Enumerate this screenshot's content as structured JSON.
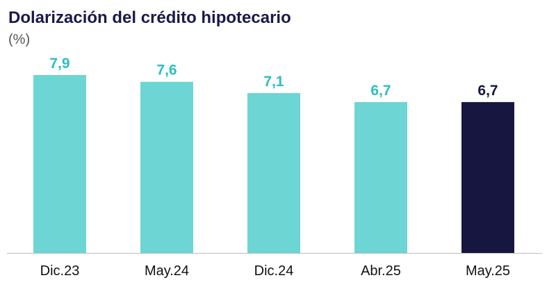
{
  "chart_data": {
    "type": "bar",
    "title": "Dolarización del crédito hipotecario",
    "subtitle": "(%)",
    "categories": [
      "Dic.23",
      "May.24",
      "Dic.24",
      "Abr.25",
      "May.25"
    ],
    "values": [
      7.9,
      7.6,
      7.1,
      6.7,
      6.7
    ],
    "value_labels": [
      "7,9",
      "7,6",
      "7,1",
      "6,7",
      "6,7"
    ],
    "ylim": [
      0,
      7.9
    ],
    "grid": false,
    "legend": "none",
    "colors": {
      "bar": "#6dd5d3",
      "highlight_bar": "#161641",
      "label": "#2bbfbd",
      "highlight_label": "#161641",
      "axis": "#bdbdbd"
    },
    "highlight_index": 4
  }
}
